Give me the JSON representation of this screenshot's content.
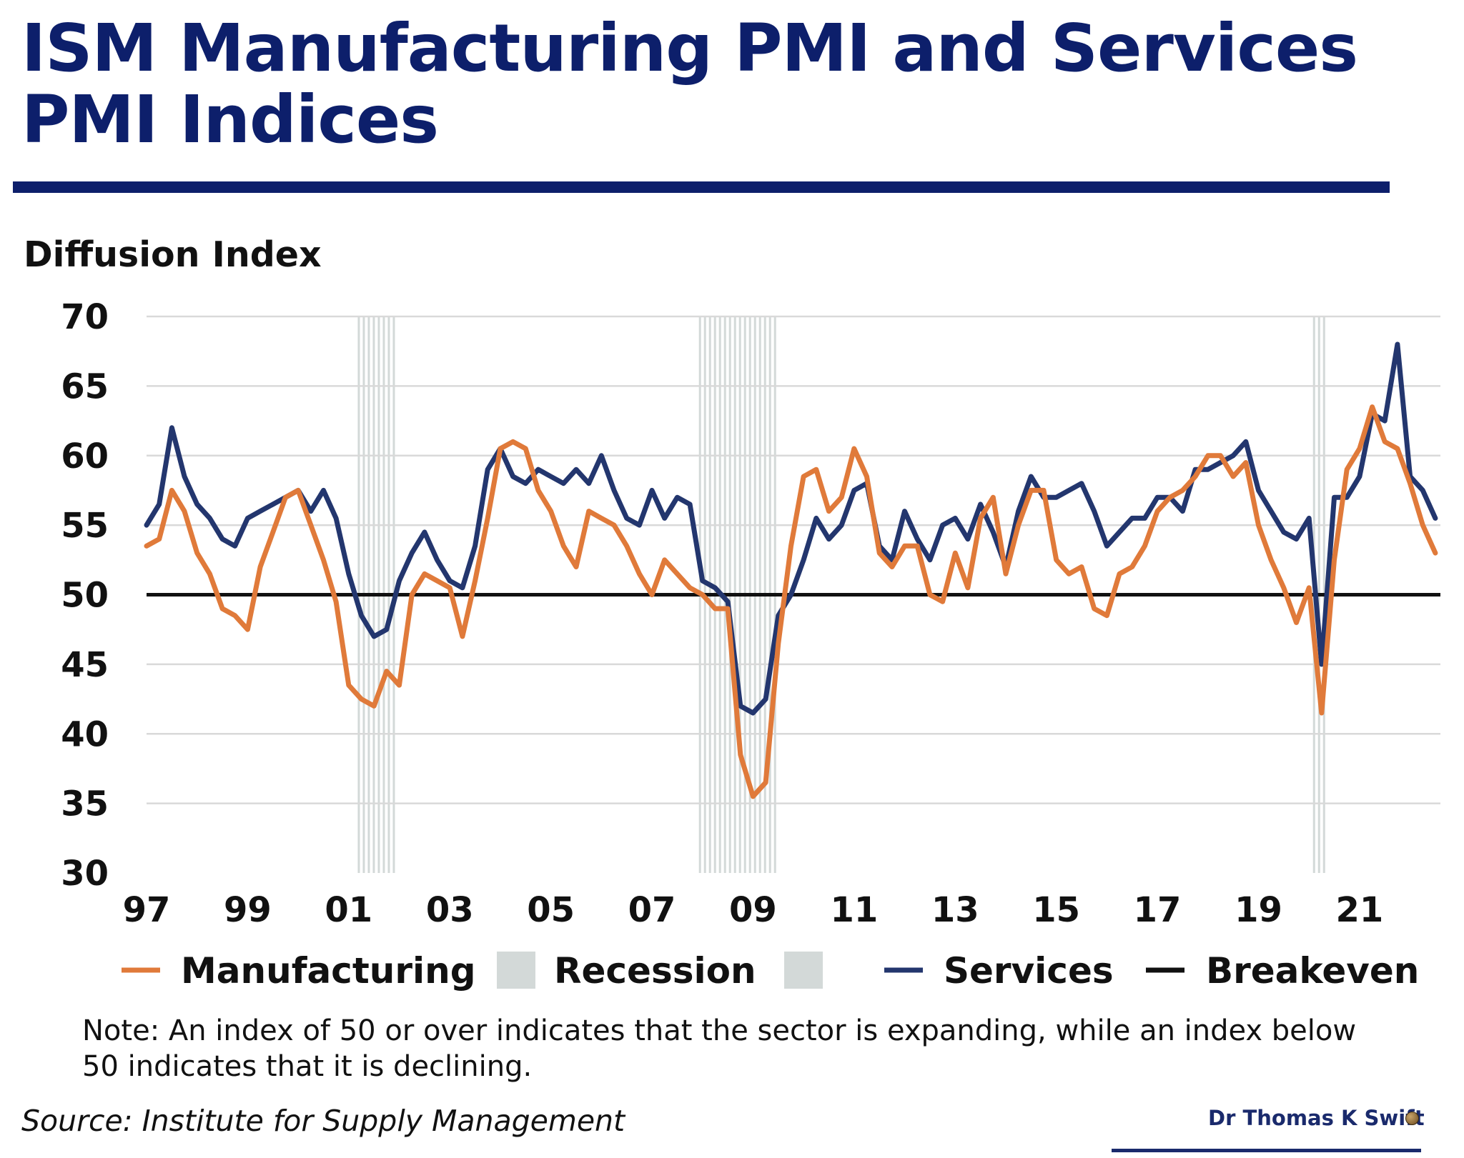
{
  "title": "ISM Manufacturing PMI and Services PMI Indices",
  "note": "Note: An index of 50 or over indicates that the sector is expanding, while an index below 50 indicates that it is declining.",
  "source": "Source: Institute for Supply Management",
  "author": "Dr Thomas K Swift",
  "colors": {
    "title": "#0d1f6b",
    "manufacturing": "#e07a3a",
    "services": "#23366e",
    "breakeven": "#111111",
    "recession": "#d3d9d8",
    "grid": "#d9d9d9"
  },
  "chart_data": {
    "type": "line",
    "ylabel": "Diffusion Index",
    "ylim": [
      30,
      70
    ],
    "yticks": [
      70,
      65,
      60,
      55,
      50,
      45,
      40,
      35,
      30
    ],
    "xlim": [
      1997,
      2022.6
    ],
    "xtick_labels": [
      "97",
      "99",
      "01",
      "03",
      "05",
      "07",
      "09",
      "11",
      "13",
      "15",
      "17",
      "19",
      "21"
    ],
    "xtick_years": [
      1997,
      1999,
      2001,
      2003,
      2005,
      2007,
      2009,
      2011,
      2013,
      2015,
      2017,
      2019,
      2021
    ],
    "grid": true,
    "legend_position": "bottom",
    "legend": [
      {
        "key": "manufacturing",
        "label": "Manufacturing",
        "kind": "line"
      },
      {
        "key": "recession",
        "label": "Recession",
        "kind": "box"
      },
      {
        "key": "recession_b",
        "label": "",
        "kind": "box"
      },
      {
        "key": "services",
        "label": "Services",
        "kind": "line"
      },
      {
        "key": "breakeven",
        "label": "Breakeven",
        "kind": "line"
      }
    ],
    "recessions": [
      {
        "start": 2001.2,
        "end": 2001.9
      },
      {
        "start": 2007.95,
        "end": 2009.5
      },
      {
        "start": 2020.1,
        "end": 2020.3
      }
    ],
    "breakeven": 50,
    "series": [
      {
        "name": "Manufacturing",
        "key": "manufacturing",
        "x": [
          1997.0,
          1997.25,
          1997.5,
          1997.75,
          1998.0,
          1998.25,
          1998.5,
          1998.75,
          1999.0,
          1999.25,
          1999.5,
          1999.75,
          2000.0,
          2000.25,
          2000.5,
          2000.75,
          2001.0,
          2001.25,
          2001.5,
          2001.75,
          2002.0,
          2002.25,
          2002.5,
          2002.75,
          2003.0,
          2003.25,
          2003.5,
          2003.75,
          2004.0,
          2004.25,
          2004.5,
          2004.75,
          2005.0,
          2005.25,
          2005.5,
          2005.75,
          2006.0,
          2006.25,
          2006.5,
          2006.75,
          2007.0,
          2007.25,
          2007.5,
          2007.75,
          2008.0,
          2008.25,
          2008.5,
          2008.75,
          2009.0,
          2009.25,
          2009.5,
          2009.75,
          2010.0,
          2010.25,
          2010.5,
          2010.75,
          2011.0,
          2011.25,
          2011.5,
          2011.75,
          2012.0,
          2012.25,
          2012.5,
          2012.75,
          2013.0,
          2013.25,
          2013.5,
          2013.75,
          2014.0,
          2014.25,
          2014.5,
          2014.75,
          2015.0,
          2015.25,
          2015.5,
          2015.75,
          2016.0,
          2016.25,
          2016.5,
          2016.75,
          2017.0,
          2017.25,
          2017.5,
          2017.75,
          2018.0,
          2018.25,
          2018.5,
          2018.75,
          2019.0,
          2019.25,
          2019.5,
          2019.75,
          2020.0,
          2020.25,
          2020.5,
          2020.75,
          2021.0,
          2021.25,
          2021.5,
          2021.75,
          2022.0,
          2022.25,
          2022.5
        ],
        "values": [
          53.5,
          54.0,
          57.5,
          56.0,
          53.0,
          51.5,
          49.0,
          48.5,
          47.5,
          52.0,
          54.5,
          57.0,
          57.5,
          55.0,
          52.5,
          49.5,
          43.5,
          42.5,
          42.0,
          44.5,
          43.5,
          50.0,
          51.5,
          51.0,
          50.5,
          47.0,
          51.0,
          55.5,
          60.5,
          61.0,
          60.5,
          57.5,
          56.0,
          53.5,
          52.0,
          56.0,
          55.5,
          55.0,
          53.5,
          51.5,
          50.0,
          52.5,
          51.5,
          50.5,
          50.0,
          49.0,
          49.0,
          38.5,
          35.5,
          36.5,
          46.5,
          53.5,
          58.5,
          59.0,
          56.0,
          57.0,
          60.5,
          58.5,
          53.0,
          52.0,
          53.5,
          53.5,
          50.0,
          49.5,
          53.0,
          50.5,
          55.5,
          57.0,
          51.5,
          55.0,
          57.5,
          57.5,
          52.5,
          51.5,
          52.0,
          49.0,
          48.5,
          51.5,
          52.0,
          53.5,
          56.0,
          57.0,
          57.5,
          58.5,
          60.0,
          60.0,
          58.5,
          59.5,
          55.0,
          52.5,
          50.5,
          48.0,
          50.5,
          41.5,
          52.5,
          59.0,
          60.5,
          63.5,
          61.0,
          60.5,
          58.0,
          55.0,
          53.0
        ]
      },
      {
        "name": "Services",
        "key": "services",
        "x": [
          1997.0,
          1997.25,
          1997.5,
          1997.75,
          1998.0,
          1998.25,
          1998.5,
          1998.75,
          1999.0,
          1999.25,
          1999.5,
          1999.75,
          2000.0,
          2000.25,
          2000.5,
          2000.75,
          2001.0,
          2001.25,
          2001.5,
          2001.75,
          2002.0,
          2002.25,
          2002.5,
          2002.75,
          2003.0,
          2003.25,
          2003.5,
          2003.75,
          2004.0,
          2004.25,
          2004.5,
          2004.75,
          2005.0,
          2005.25,
          2005.5,
          2005.75,
          2006.0,
          2006.25,
          2006.5,
          2006.75,
          2007.0,
          2007.25,
          2007.5,
          2007.75,
          2008.0,
          2008.25,
          2008.5,
          2008.75,
          2009.0,
          2009.25,
          2009.5,
          2009.75,
          2010.0,
          2010.25,
          2010.5,
          2010.75,
          2011.0,
          2011.25,
          2011.5,
          2011.75,
          2012.0,
          2012.25,
          2012.5,
          2012.75,
          2013.0,
          2013.25,
          2013.5,
          2013.75,
          2014.0,
          2014.25,
          2014.5,
          2014.75,
          2015.0,
          2015.25,
          2015.5,
          2015.75,
          2016.0,
          2016.25,
          2016.5,
          2016.75,
          2017.0,
          2017.25,
          2017.5,
          2017.75,
          2018.0,
          2018.25,
          2018.5,
          2018.75,
          2019.0,
          2019.25,
          2019.5,
          2019.75,
          2020.0,
          2020.25,
          2020.5,
          2020.75,
          2021.0,
          2021.25,
          2021.5,
          2021.75,
          2022.0,
          2022.25,
          2022.5
        ],
        "values": [
          55.0,
          56.5,
          62.0,
          58.5,
          56.5,
          55.5,
          54.0,
          53.5,
          55.5,
          56.0,
          56.5,
          57.0,
          57.5,
          56.0,
          57.5,
          55.5,
          51.5,
          48.5,
          47.0,
          47.5,
          51.0,
          53.0,
          54.5,
          52.5,
          51.0,
          50.5,
          53.5,
          59.0,
          60.5,
          58.5,
          58.0,
          59.0,
          58.5,
          58.0,
          59.0,
          58.0,
          60.0,
          57.5,
          55.5,
          55.0,
          57.5,
          55.5,
          57.0,
          56.5,
          51.0,
          50.5,
          49.5,
          42.0,
          41.5,
          42.5,
          48.5,
          50.0,
          52.5,
          55.5,
          54.0,
          55.0,
          57.5,
          58.0,
          53.5,
          52.5,
          56.0,
          54.0,
          52.5,
          55.0,
          55.5,
          54.0,
          56.5,
          54.5,
          52.0,
          56.0,
          58.5,
          57.0,
          57.0,
          57.5,
          58.0,
          56.0,
          53.5,
          54.5,
          55.5,
          55.5,
          57.0,
          57.0,
          56.0,
          59.0,
          59.0,
          59.5,
          60.0,
          61.0,
          57.5,
          56.0,
          54.5,
          54.0,
          55.5,
          45.0,
          57.0,
          57.0,
          58.5,
          63.0,
          62.5,
          68.0,
          58.5,
          57.5,
          55.5
        ]
      }
    ]
  }
}
